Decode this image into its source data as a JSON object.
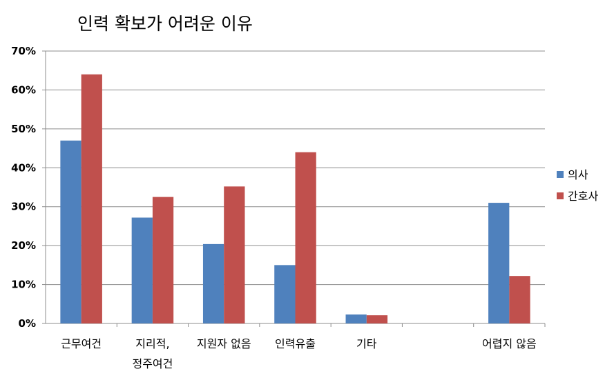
{
  "chart_data": {
    "type": "bar",
    "title": "인력 확보가 어려운 이유",
    "categories": [
      [
        "근무여건"
      ],
      [
        "지리적,",
        "정주여건"
      ],
      [
        "지원자 없음"
      ],
      [
        "인력유출"
      ],
      [
        "기타"
      ],
      [
        ""
      ],
      [
        "어렵지 않음"
      ]
    ],
    "series": [
      {
        "name": "의사",
        "color": "#4f81bd",
        "values": [
          47,
          27.2,
          20.4,
          15,
          2.3,
          0,
          31
        ]
      },
      {
        "name": "간호사",
        "color": "#c0504d",
        "values": [
          64,
          32.5,
          35.2,
          44,
          2.1,
          0,
          12.2
        ]
      }
    ],
    "yticks": [
      "0%",
      "10%",
      "20%",
      "30%",
      "40%",
      "50%",
      "60%",
      "70%"
    ],
    "ylim": [
      0,
      70
    ],
    "grid": true,
    "legend_position": "right"
  }
}
